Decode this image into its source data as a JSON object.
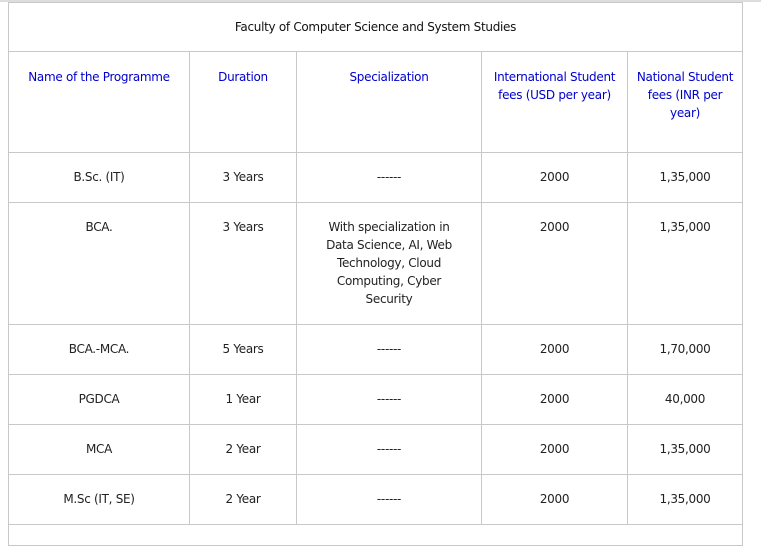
{
  "table": {
    "title": "Faculty of Computer Science and System Studies",
    "headers": [
      "Name of the Programme",
      "Duration",
      "Specialization",
      "International Student fees (USD per year)",
      "National Student fees (INR per year)"
    ],
    "rows": [
      [
        "B.Sc. (IT)",
        "3 Years",
        "------",
        "2000",
        "1,35,000"
      ],
      [
        "BCA.",
        "3 Years",
        "With specialization in Data Science, AI, Web Technology, Cloud Computing, Cyber Security",
        "2000",
        "1,35,000"
      ],
      [
        "BCA.-MCA.",
        "5 Years",
        "------",
        "2000",
        "1,70,000"
      ],
      [
        "PGDCA",
        "1 Year",
        "------",
        "2000",
        "40,000"
      ],
      [
        "MCA",
        "2 Year",
        "------",
        "2000",
        "1,35,000"
      ],
      [
        "M.Sc (IT, SE)",
        "2 Year",
        "------",
        "2000",
        "1,35,000"
      ]
    ]
  },
  "colors": {
    "header_text": "#0000cc",
    "border": "#c8c8c8"
  }
}
